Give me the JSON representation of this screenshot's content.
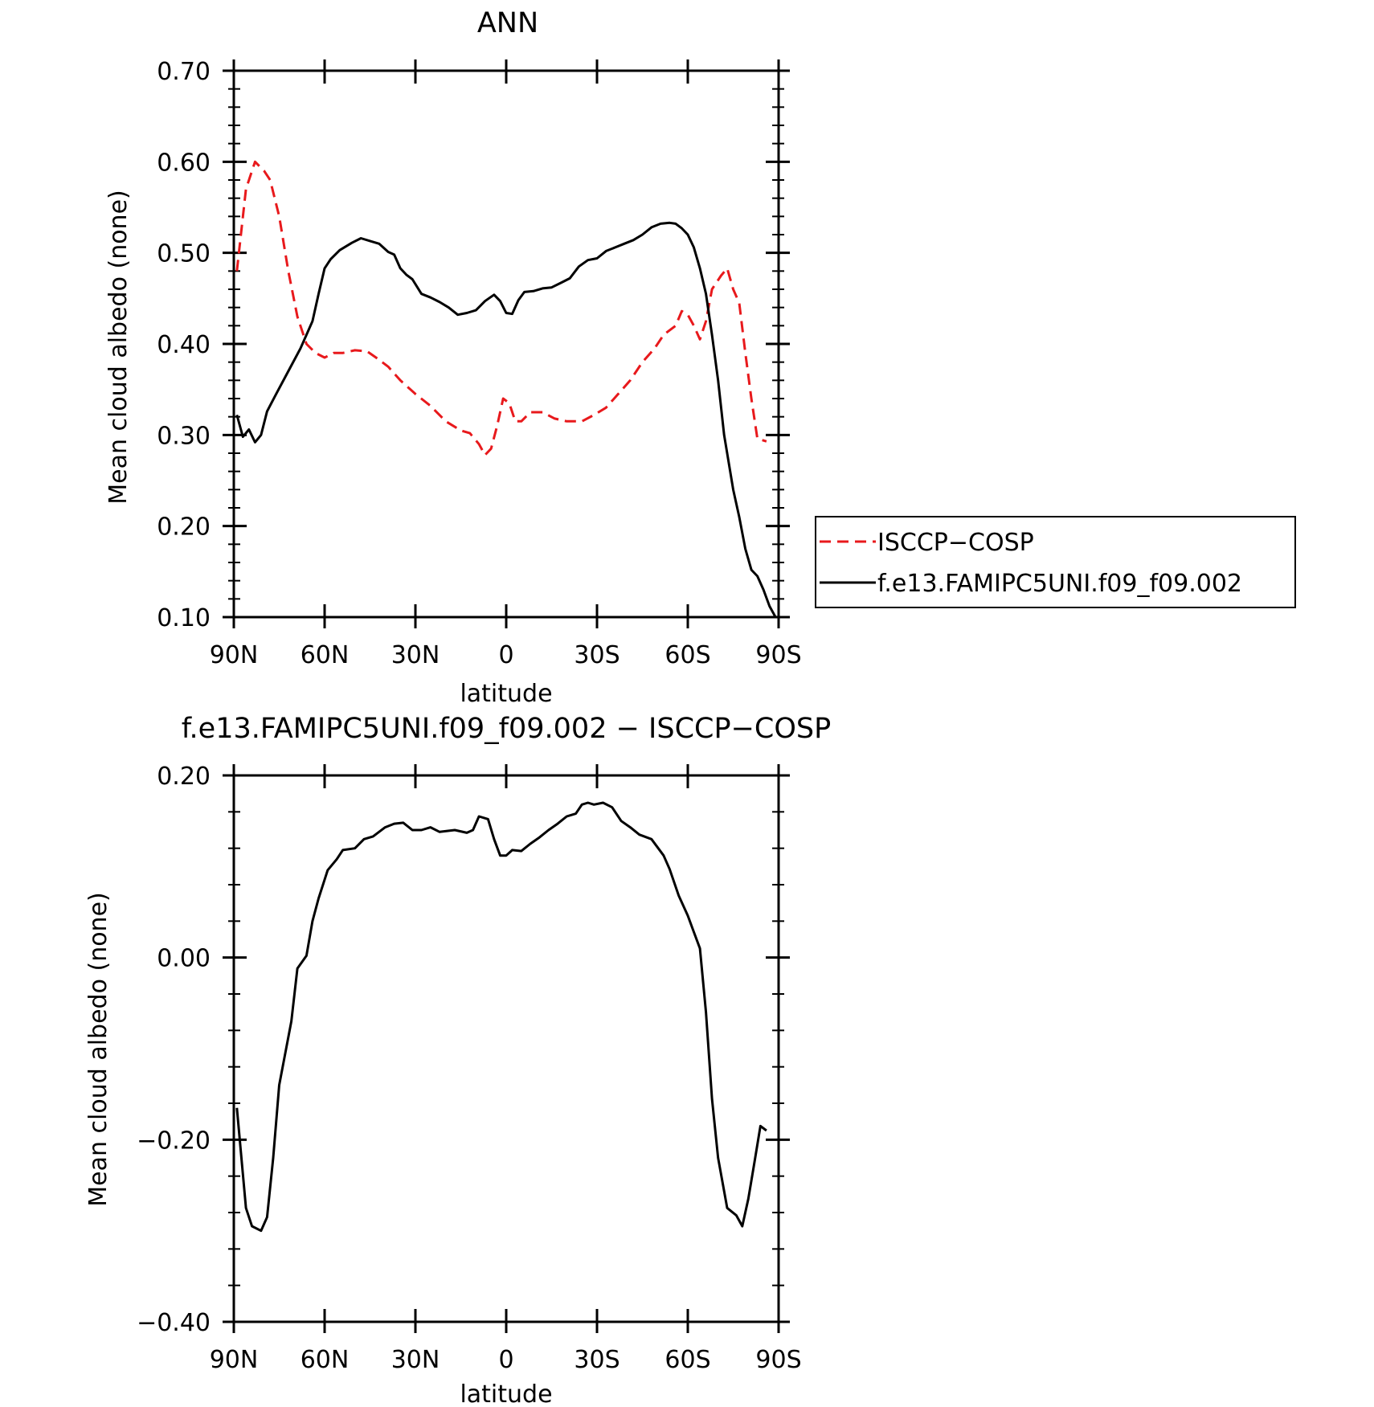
{
  "chart_data": [
    {
      "type": "line",
      "title": "ANN",
      "xlabel": "latitude",
      "ylabel": "Mean cloud albedo (none)",
      "xlim": [
        90,
        -90
      ],
      "ylim": [
        0.1,
        0.7
      ],
      "x_ticks": [
        90,
        60,
        30,
        0,
        -30,
        -60,
        -90
      ],
      "x_tick_labels": [
        "90N",
        "60N",
        "30N",
        "0",
        "30S",
        "60S",
        "90S"
      ],
      "y_ticks": [
        0.1,
        0.2,
        0.3,
        0.4,
        0.5,
        0.6,
        0.7
      ],
      "y_tick_labels": [
        "0.10",
        "0.20",
        "0.30",
        "0.40",
        "0.50",
        "0.60",
        "0.70"
      ],
      "legend_position": "right",
      "series": [
        {
          "name": "ISCCP−COSP",
          "color": "#e8191c",
          "dash": "dashed",
          "points": [
            [
              89,
              0.48
            ],
            [
              86,
              0.57
            ],
            [
              83,
              0.6
            ],
            [
              80,
              0.59
            ],
            [
              78,
              0.58
            ],
            [
              75,
              0.54
            ],
            [
              72,
              0.48
            ],
            [
              69,
              0.43
            ],
            [
              66,
              0.4
            ],
            [
              63,
              0.39
            ],
            [
              60,
              0.385
            ],
            [
              57,
              0.39
            ],
            [
              54,
              0.39
            ],
            [
              50,
              0.393
            ],
            [
              46,
              0.392
            ],
            [
              43,
              0.385
            ],
            [
              39,
              0.375
            ],
            [
              35,
              0.36
            ],
            [
              30,
              0.345
            ],
            [
              25,
              0.332
            ],
            [
              20,
              0.315
            ],
            [
              15,
              0.305
            ],
            [
              12,
              0.302
            ],
            [
              9,
              0.29
            ],
            [
              7,
              0.278
            ],
            [
              5,
              0.285
            ],
            [
              3,
              0.31
            ],
            [
              1,
              0.34
            ],
            [
              -1,
              0.335
            ],
            [
              -3,
              0.315
            ],
            [
              -5,
              0.315
            ],
            [
              -8,
              0.325
            ],
            [
              -12,
              0.325
            ],
            [
              -16,
              0.318
            ],
            [
              -20,
              0.315
            ],
            [
              -25,
              0.315
            ],
            [
              -29,
              0.322
            ],
            [
              -33,
              0.33
            ],
            [
              -37,
              0.345
            ],
            [
              -41,
              0.36
            ],
            [
              -45,
              0.38
            ],
            [
              -49,
              0.395
            ],
            [
              -52,
              0.41
            ],
            [
              -56,
              0.42
            ],
            [
              -58,
              0.436
            ],
            [
              -60,
              0.432
            ],
            [
              -62,
              0.42
            ],
            [
              -64,
              0.405
            ],
            [
              -66,
              0.425
            ],
            [
              -68,
              0.46
            ],
            [
              -71,
              0.475
            ],
            [
              -73,
              0.483
            ],
            [
              -75,
              0.46
            ],
            [
              -77,
              0.445
            ],
            [
              -79,
              0.39
            ],
            [
              -81,
              0.34
            ],
            [
              -83,
              0.296
            ],
            [
              -86,
              0.293
            ]
          ]
        },
        {
          "name": "f.e13.FAMIPC5UNI.f09_f09.002",
          "color": "#000000",
          "dash": "solid",
          "points": [
            [
              89,
              0.322
            ],
            [
              87,
              0.298
            ],
            [
              85,
              0.306
            ],
            [
              83,
              0.292
            ],
            [
              81,
              0.3
            ],
            [
              79,
              0.326
            ],
            [
              76,
              0.345
            ],
            [
              72,
              0.37
            ],
            [
              68,
              0.395
            ],
            [
              64,
              0.425
            ],
            [
              62,
              0.455
            ],
            [
              60,
              0.483
            ],
            [
              58,
              0.493
            ],
            [
              55,
              0.503
            ],
            [
              51,
              0.511
            ],
            [
              48,
              0.516
            ],
            [
              45,
              0.513
            ],
            [
              42,
              0.51
            ],
            [
              39,
              0.501
            ],
            [
              37,
              0.498
            ],
            [
              35,
              0.483
            ],
            [
              33,
              0.476
            ],
            [
              31,
              0.471
            ],
            [
              28,
              0.455
            ],
            [
              25,
              0.451
            ],
            [
              22,
              0.446
            ],
            [
              19,
              0.44
            ],
            [
              16,
              0.432
            ],
            [
              13,
              0.434
            ],
            [
              10,
              0.437
            ],
            [
              7,
              0.447
            ],
            [
              4,
              0.454
            ],
            [
              2,
              0.447
            ],
            [
              0,
              0.434
            ],
            [
              -2,
              0.433
            ],
            [
              -4,
              0.448
            ],
            [
              -6,
              0.457
            ],
            [
              -9,
              0.458
            ],
            [
              -12,
              0.461
            ],
            [
              -15,
              0.462
            ],
            [
              -18,
              0.467
            ],
            [
              -21,
              0.472
            ],
            [
              -24,
              0.485
            ],
            [
              -27,
              0.492
            ],
            [
              -30,
              0.494
            ],
            [
              -33,
              0.502
            ],
            [
              -36,
              0.506
            ],
            [
              -39,
              0.51
            ],
            [
              -42,
              0.514
            ],
            [
              -45,
              0.52
            ],
            [
              -48,
              0.528
            ],
            [
              -51,
              0.532
            ],
            [
              -54,
              0.533
            ],
            [
              -56,
              0.532
            ],
            [
              -58,
              0.527
            ],
            [
              -60,
              0.52
            ],
            [
              -62,
              0.506
            ],
            [
              -64,
              0.483
            ],
            [
              -66,
              0.455
            ],
            [
              -68,
              0.41
            ],
            [
              -70,
              0.36
            ],
            [
              -72,
              0.3
            ],
            [
              -75,
              0.24
            ],
            [
              -77,
              0.21
            ],
            [
              -79,
              0.175
            ],
            [
              -81,
              0.152
            ],
            [
              -83,
              0.145
            ],
            [
              -85,
              0.13
            ],
            [
              -87,
              0.112
            ],
            [
              -89,
              0.1
            ]
          ]
        }
      ]
    },
    {
      "type": "line",
      "title": "f.e13.FAMIPC5UNI.f09_f09.002 − ISCCP−COSP",
      "xlabel": "latitude",
      "ylabel": "Mean cloud albedo (none)",
      "xlim": [
        90,
        -90
      ],
      "ylim": [
        -0.4,
        0.2
      ],
      "x_ticks": [
        90,
        60,
        30,
        0,
        -30,
        -60,
        -90
      ],
      "x_tick_labels": [
        "90N",
        "60N",
        "30N",
        "0",
        "30S",
        "60S",
        "90S"
      ],
      "y_ticks": [
        0.2,
        0.0,
        -0.2,
        -0.4
      ],
      "y_tick_labels": [
        "0.20",
        "0.00",
        "−0.20",
        "−0.40"
      ],
      "series": [
        {
          "color": "#000000",
          "dash": "solid",
          "points": [
            [
              89,
              -0.165
            ],
            [
              86,
              -0.275
            ],
            [
              84,
              -0.295
            ],
            [
              81,
              -0.3
            ],
            [
              79,
              -0.285
            ],
            [
              77,
              -0.22
            ],
            [
              75,
              -0.14
            ],
            [
              71,
              -0.07
            ],
            [
              69,
              -0.012
            ],
            [
              66,
              0.002
            ],
            [
              64,
              0.04
            ],
            [
              62,
              0.065
            ],
            [
              59,
              0.096
            ],
            [
              56,
              0.108
            ],
            [
              54,
              0.118
            ],
            [
              50,
              0.12
            ],
            [
              47,
              0.13
            ],
            [
              44,
              0.133
            ],
            [
              40,
              0.143
            ],
            [
              37,
              0.147
            ],
            [
              34,
              0.148
            ],
            [
              31,
              0.14
            ],
            [
              28,
              0.14
            ],
            [
              25,
              0.143
            ],
            [
              22,
              0.138
            ],
            [
              17,
              0.14
            ],
            [
              13,
              0.137
            ],
            [
              11,
              0.14
            ],
            [
              9,
              0.155
            ],
            [
              6,
              0.152
            ],
            [
              4,
              0.13
            ],
            [
              2,
              0.112
            ],
            [
              0,
              0.112
            ],
            [
              -2,
              0.118
            ],
            [
              -5,
              0.117
            ],
            [
              -8,
              0.125
            ],
            [
              -11,
              0.132
            ],
            [
              -14,
              0.14
            ],
            [
              -17,
              0.147
            ],
            [
              -20,
              0.155
            ],
            [
              -23,
              0.158
            ],
            [
              -25,
              0.168
            ],
            [
              -27,
              0.17
            ],
            [
              -29,
              0.168
            ],
            [
              -32,
              0.17
            ],
            [
              -35,
              0.165
            ],
            [
              -38,
              0.15
            ],
            [
              -41,
              0.143
            ],
            [
              -44,
              0.135
            ],
            [
              -48,
              0.13
            ],
            [
              -52,
              0.112
            ],
            [
              -54,
              0.097
            ],
            [
              -57,
              0.068
            ],
            [
              -60,
              0.046
            ],
            [
              -62,
              0.028
            ],
            [
              -64,
              0.01
            ],
            [
              -66,
              -0.06
            ],
            [
              -68,
              -0.155
            ],
            [
              -70,
              -0.22
            ],
            [
              -73,
              -0.275
            ],
            [
              -76,
              -0.283
            ],
            [
              -78,
              -0.295
            ],
            [
              -80,
              -0.265
            ],
            [
              -82,
              -0.225
            ],
            [
              -84,
              -0.185
            ],
            [
              -86,
              -0.19
            ]
          ]
        }
      ]
    }
  ]
}
